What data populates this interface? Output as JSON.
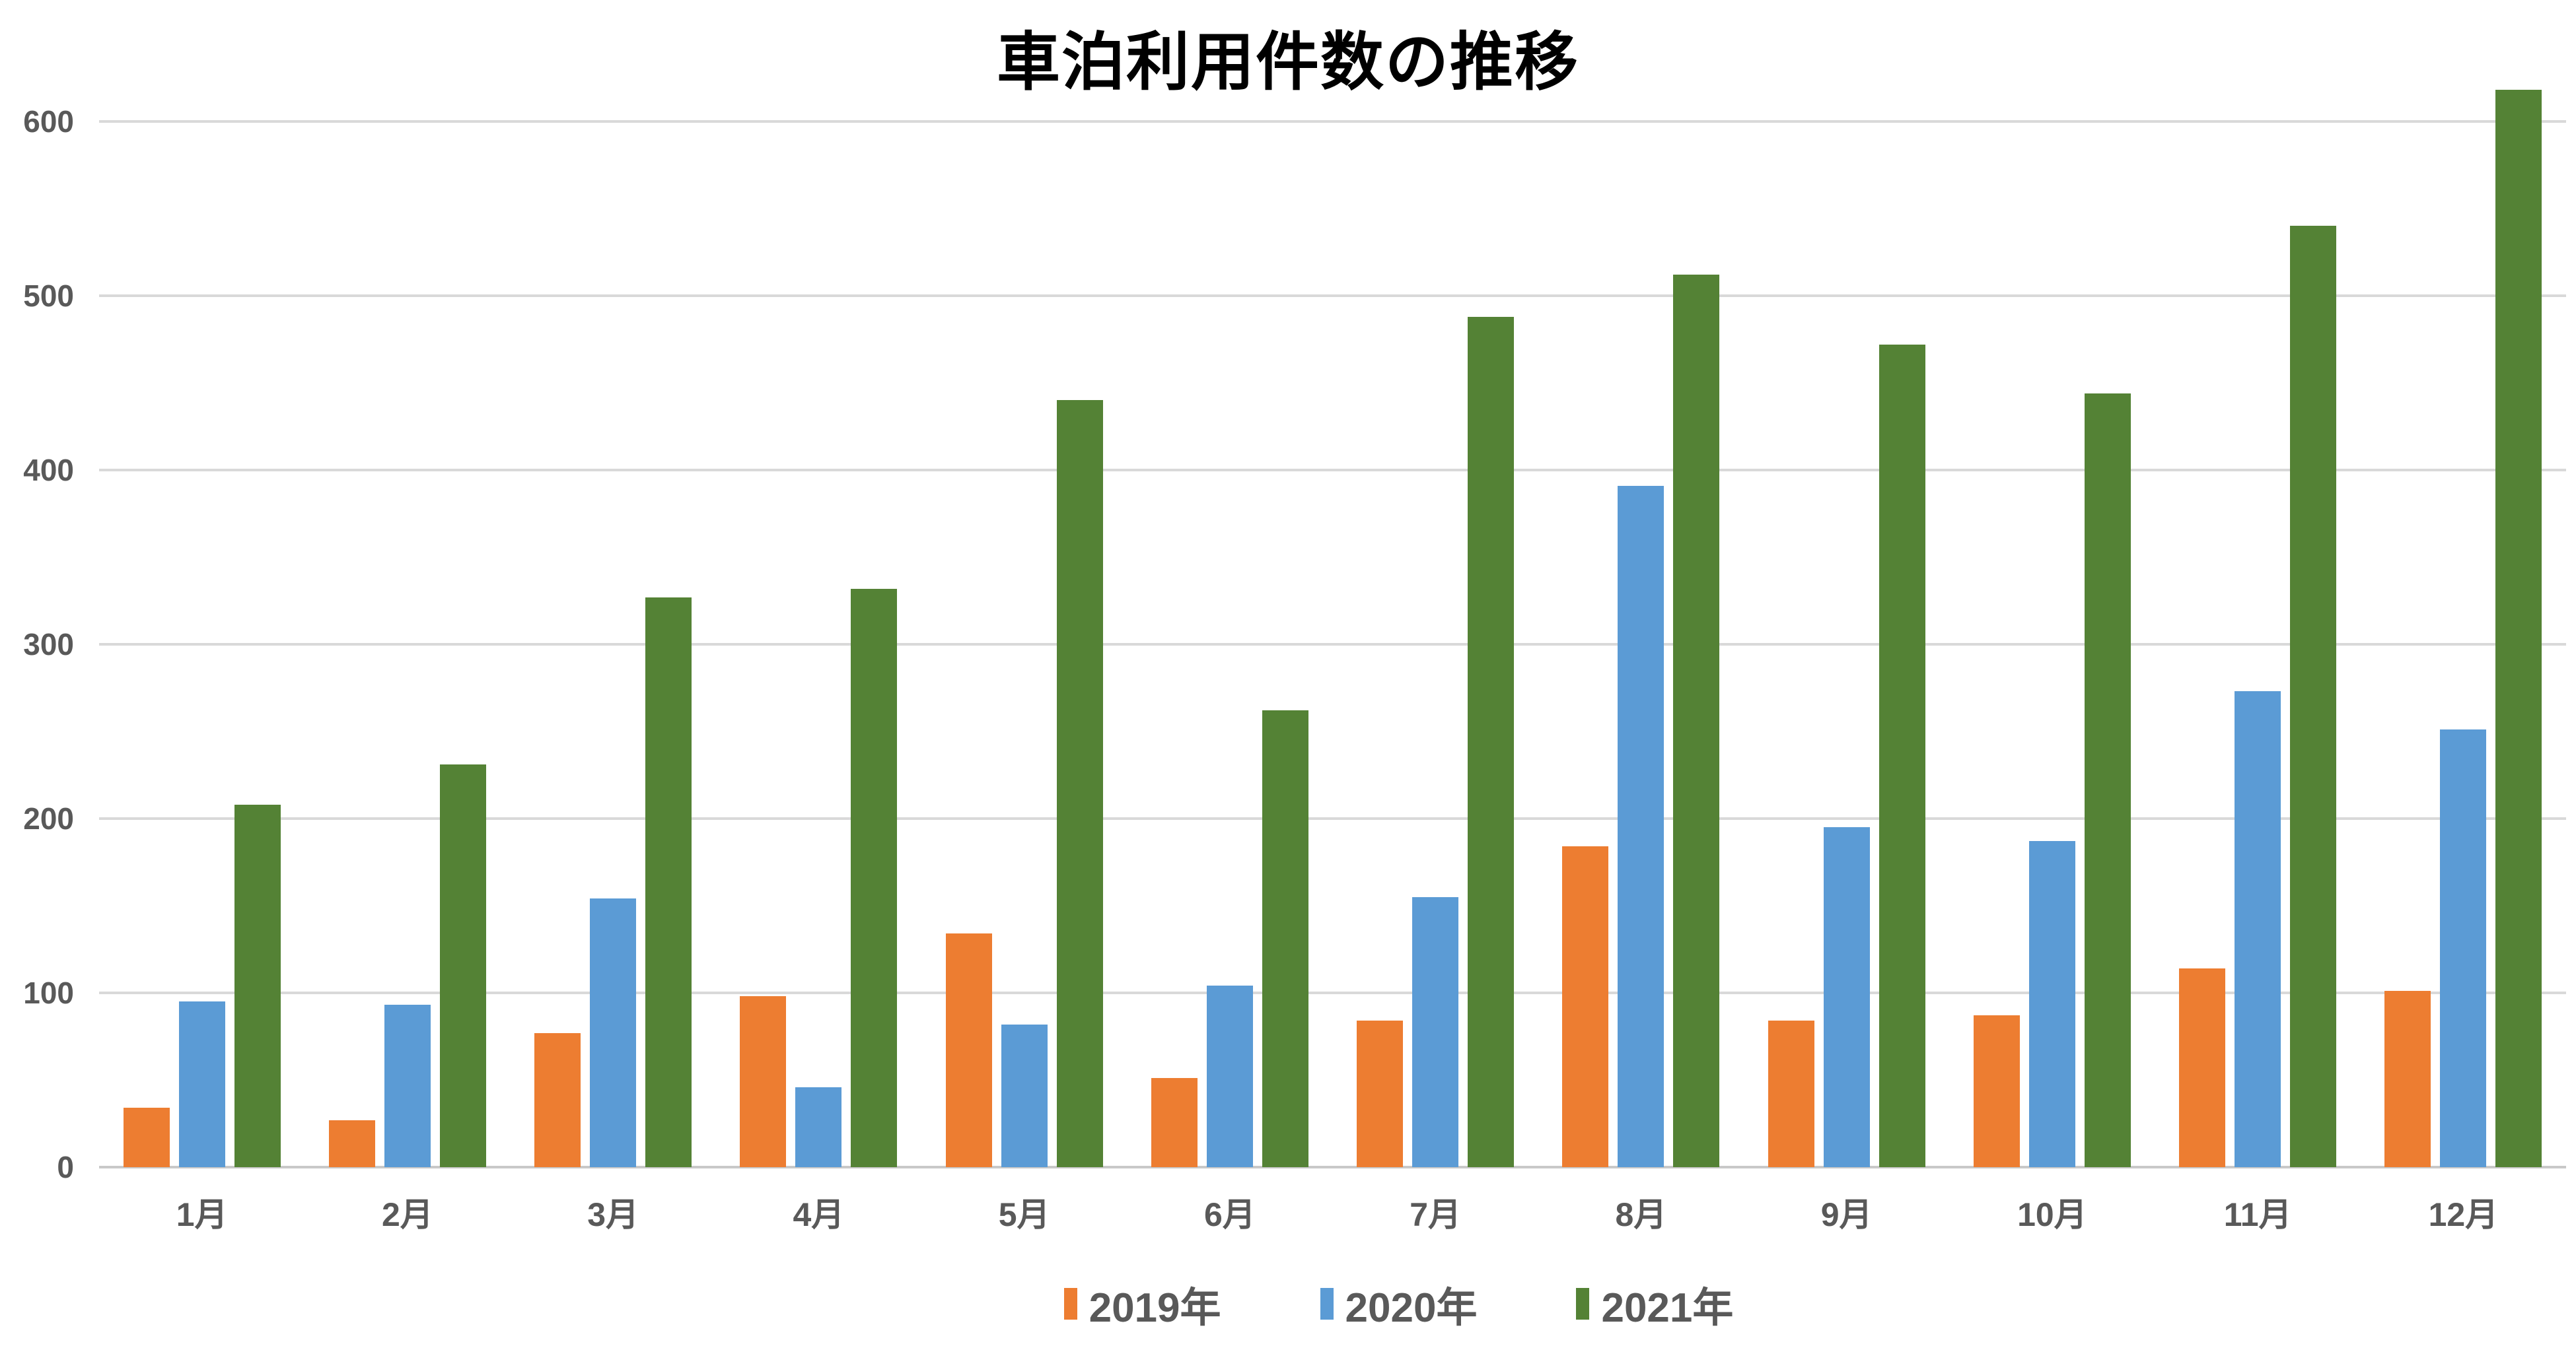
{
  "chart_data": {
    "type": "bar",
    "title": "車泊利用件数の推移",
    "categories": [
      "1月",
      "2月",
      "3月",
      "4月",
      "5月",
      "6月",
      "7月",
      "8月",
      "9月",
      "10月",
      "11月",
      "12月"
    ],
    "series": [
      {
        "name": "2019年",
        "color": "#ED7D31",
        "values": [
          34,
          27,
          77,
          98,
          134,
          51,
          84,
          184,
          84,
          87,
          114,
          101
        ]
      },
      {
        "name": "2020年",
        "color": "#5B9BD5",
        "values": [
          95,
          93,
          154,
          46,
          82,
          104,
          155,
          391,
          195,
          187,
          273,
          251
        ]
      },
      {
        "name": "2021年",
        "color": "#548235",
        "values": [
          208,
          231,
          327,
          332,
          440,
          262,
          488,
          512,
          472,
          444,
          540,
          618
        ]
      }
    ],
    "xlabel": "",
    "ylabel": "",
    "ylim": [
      0,
      600
    ],
    "yticks": [
      0,
      100,
      200,
      300,
      400,
      500,
      600
    ],
    "grid": true,
    "legend_position": "bottom"
  },
  "style": {
    "grid_color": "#D9D9D9",
    "axis_line_color": "#C9C9C9",
    "tick_text_color": "#595959",
    "title_color": "#000000",
    "background": "#FFFFFF"
  }
}
